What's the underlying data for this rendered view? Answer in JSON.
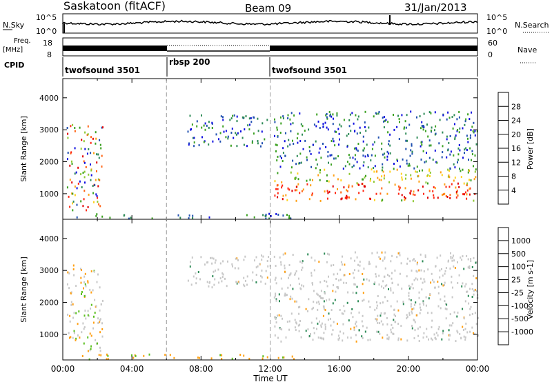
{
  "chart_data": {
    "type": "heatmap",
    "title": {
      "station": "Saskatoon (fitACF)",
      "beam": "Beam 09",
      "date": "31/Jan/2013"
    },
    "top_panels": {
      "nsky_label": "N.Sky",
      "nsky_ticks": [
        "10^5",
        "10^0"
      ],
      "nsearch_label": "N.Search",
      "nsearch_ticks": [
        "10^5",
        "10^0"
      ],
      "freq_label": "Freq.",
      "freq_unit": "[MHz]",
      "freq_ticks": [
        "18",
        "8"
      ],
      "nave_label": "Nave",
      "nave_ticks": [
        "60",
        "0"
      ],
      "cpid_label": "CPID",
      "cpid_segments": [
        {
          "name": "twofsound 3501",
          "start_hour": 0,
          "end_hour": 6
        },
        {
          "name": "rbsp 200",
          "start_hour": 6,
          "end_hour": 12
        },
        {
          "name": "twofsound 3501",
          "start_hour": 12,
          "end_hour": 24
        }
      ]
    },
    "x": {
      "label": "Time UT",
      "ticks": [
        "00:00",
        "04:00",
        "08:00",
        "12:00",
        "16:00",
        "20:00",
        "00:00"
      ],
      "range_hours": [
        0,
        24
      ]
    },
    "panels": [
      {
        "name": "power",
        "ylabel": "Slant Range [km]",
        "yticks": [
          "1000",
          "2000",
          "3000",
          "4000"
        ],
        "ylim": [
          200,
          4600
        ],
        "colorbar_label": "Power [dB]",
        "colorbar_ticks": [
          "4",
          "8",
          "12",
          "16",
          "20",
          "24",
          "28"
        ],
        "colors": [
          "#1010e0",
          "#2050b0",
          "#2e8b57",
          "#3aa020",
          "#8ec832",
          "#ffd21e",
          "#ffa014",
          "#ff6414",
          "#ff2814",
          "#e00000"
        ],
        "regions": [
          {
            "t0": 0.2,
            "t1": 2.3,
            "r0": 500,
            "r1": 3200,
            "level": "mixed"
          },
          {
            "t0": 7.2,
            "t1": 12.0,
            "r0": 2500,
            "r1": 3500,
            "level": "low"
          },
          {
            "t0": 12.2,
            "t1": 24,
            "r0": 800,
            "r1": 3600,
            "level": "high"
          },
          {
            "t0": 0.5,
            "t1": 13.5,
            "r0": 250,
            "r1": 400,
            "level": "low"
          }
        ]
      },
      {
        "name": "velocity",
        "ylabel": "Slant Range [km]",
        "yticks": [
          "1000",
          "2000",
          "3000",
          "4000"
        ],
        "ylim": [
          200,
          4600
        ],
        "colorbar_label": "Velocity [m s-1]",
        "colorbar_ticks": [
          "1000",
          "500",
          "100",
          "25",
          "-25",
          "-100",
          "-500",
          "-1000"
        ],
        "colors": [
          "#1a1ac8",
          "#2a60a0",
          "#2e8b57",
          "#5cc020",
          "#c8c8c8",
          "#c8c8c8",
          "#ffa014",
          "#ff6414",
          "#ff2814",
          "#e00000"
        ],
        "regions": [
          {
            "t0": 0.2,
            "t1": 2.3,
            "r0": 500,
            "r1": 3200,
            "level": "mixed"
          },
          {
            "t0": 7.2,
            "t1": 12.0,
            "r0": 2500,
            "r1": 3500,
            "level": "gray"
          },
          {
            "t0": 12.2,
            "t1": 24,
            "r0": 800,
            "r1": 3600,
            "level": "gray"
          },
          {
            "t0": 0.5,
            "t1": 13.5,
            "r0": 250,
            "r1": 400,
            "level": "orange"
          }
        ]
      }
    ],
    "dashed_times_hours": [
      6,
      12
    ]
  }
}
